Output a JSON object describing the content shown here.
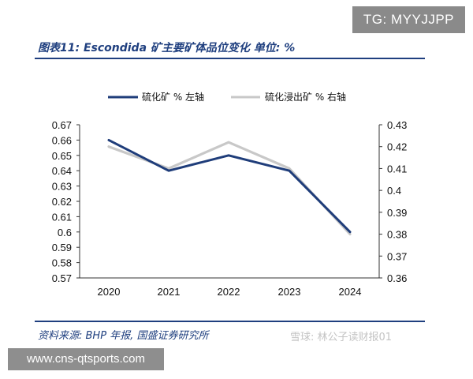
{
  "header": {
    "badge": "TG: MYYJJPP"
  },
  "figure": {
    "title": "图表11: Escondida 矿主要矿体品位变化 单位: %"
  },
  "footer": {
    "source": "资料来源: BHP 年报, 国盛证券研究所",
    "watermark": "雪球: 林公子读财报01",
    "url": "www.cns-qtsports.com"
  },
  "chart_data": {
    "type": "line",
    "categories": [
      "2020",
      "2021",
      "2022",
      "2023",
      "2024"
    ],
    "series": [
      {
        "name": "硫化矿 % 左轴",
        "axis": "left",
        "color": "#1f3d7a",
        "values": [
          0.66,
          0.64,
          0.65,
          0.64,
          0.6
        ]
      },
      {
        "name": "硫化浸出矿 % 右轴",
        "axis": "right",
        "color": "#c8c8c8",
        "values": [
          0.42,
          0.41,
          0.422,
          0.41,
          0.38
        ]
      }
    ],
    "y_left": {
      "min": 0.57,
      "max": 0.67,
      "ticks": [
        "0.67",
        "0.66",
        "0.65",
        "0.64",
        "0.63",
        "0.62",
        "0.61",
        "0.6",
        "0.59",
        "0.58",
        "0.57"
      ]
    },
    "y_right": {
      "min": 0.36,
      "max": 0.43,
      "ticks": [
        "0.43",
        "0.42",
        "0.41",
        "0.4",
        "0.39",
        "0.38",
        "0.37",
        "0.36"
      ]
    },
    "legend_position": "top-center",
    "grid": false
  }
}
